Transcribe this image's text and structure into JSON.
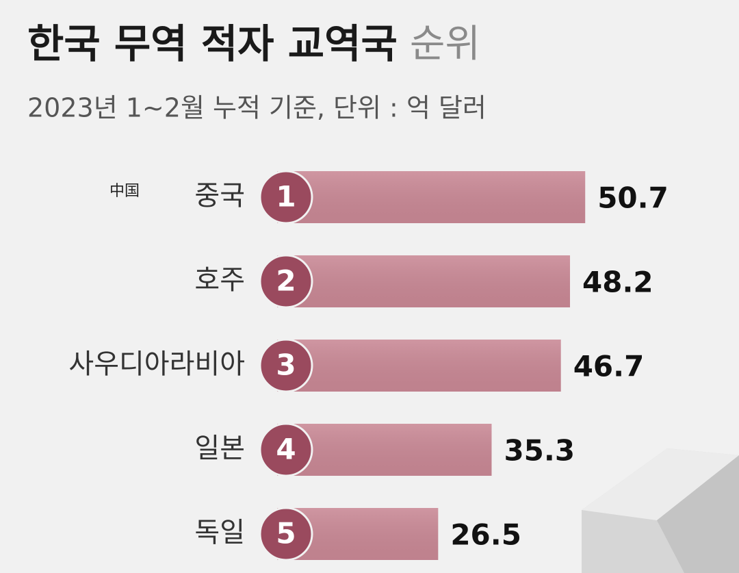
{
  "chart_data": {
    "type": "bar",
    "title": "한국 무역 적자 교역국",
    "title_suffix": "순위",
    "subtitle": "2023년 1~2월 누적 기준, 단위 : 억 달러",
    "annotation": "中国",
    "categories": [
      "중국",
      "호주",
      "사우디아라비아",
      "일본",
      "독일"
    ],
    "ranks": [
      "1",
      "2",
      "3",
      "4",
      "5"
    ],
    "values": [
      50.7,
      48.2,
      46.7,
      35.3,
      26.5
    ],
    "color": "#c98895",
    "rank_color": "#9a4a5e"
  }
}
